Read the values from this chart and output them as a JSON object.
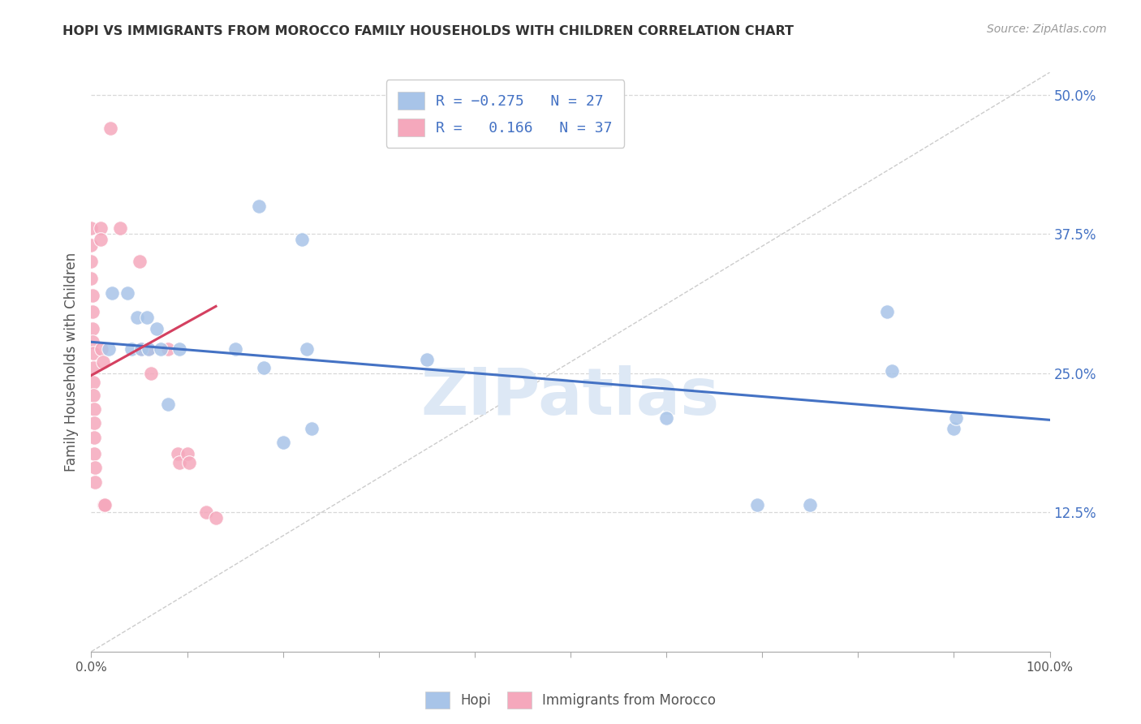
{
  "title": "HOPI VS IMMIGRANTS FROM MOROCCO FAMILY HOUSEHOLDS WITH CHILDREN CORRELATION CHART",
  "source": "Source: ZipAtlas.com",
  "ylabel": "Family Households with Children",
  "watermark": "ZIPatlas",
  "legend": {
    "hopi_r": "-0.275",
    "hopi_n": "27",
    "morocco_r": "0.166",
    "morocco_n": "37"
  },
  "xlim": [
    0.0,
    1.0
  ],
  "ylim": [
    0.0,
    0.52
  ],
  "yticks": [
    0.0,
    0.125,
    0.25,
    0.375,
    0.5
  ],
  "yticklabels_right": [
    "",
    "12.5%",
    "25.0%",
    "37.5%",
    "50.0%"
  ],
  "hopi_color": "#a8c4e8",
  "morocco_color": "#f5a8bc",
  "hopi_line_color": "#4472C4",
  "morocco_line_color": "#d44060",
  "hopi_scatter": [
    [
      0.018,
      0.272
    ],
    [
      0.022,
      0.322
    ],
    [
      0.038,
      0.322
    ],
    [
      0.042,
      0.272
    ],
    [
      0.048,
      0.3
    ],
    [
      0.052,
      0.272
    ],
    [
      0.058,
      0.3
    ],
    [
      0.06,
      0.272
    ],
    [
      0.068,
      0.29
    ],
    [
      0.072,
      0.272
    ],
    [
      0.08,
      0.222
    ],
    [
      0.092,
      0.272
    ],
    [
      0.15,
      0.272
    ],
    [
      0.175,
      0.4
    ],
    [
      0.18,
      0.255
    ],
    [
      0.2,
      0.188
    ],
    [
      0.22,
      0.37
    ],
    [
      0.225,
      0.272
    ],
    [
      0.23,
      0.2
    ],
    [
      0.35,
      0.262
    ],
    [
      0.6,
      0.21
    ],
    [
      0.695,
      0.132
    ],
    [
      0.75,
      0.132
    ],
    [
      0.83,
      0.305
    ],
    [
      0.835,
      0.252
    ],
    [
      0.9,
      0.2
    ],
    [
      0.902,
      0.21
    ]
  ],
  "morocco_scatter": [
    [
      0.0,
      0.38
    ],
    [
      0.0,
      0.365
    ],
    [
      0.0,
      0.35
    ],
    [
      0.0,
      0.335
    ],
    [
      0.001,
      0.32
    ],
    [
      0.001,
      0.305
    ],
    [
      0.001,
      0.29
    ],
    [
      0.001,
      0.278
    ],
    [
      0.002,
      0.268
    ],
    [
      0.002,
      0.255
    ],
    [
      0.002,
      0.242
    ],
    [
      0.002,
      0.23
    ],
    [
      0.003,
      0.218
    ],
    [
      0.003,
      0.205
    ],
    [
      0.003,
      0.192
    ],
    [
      0.003,
      0.178
    ],
    [
      0.004,
      0.165
    ],
    [
      0.004,
      0.152
    ],
    [
      0.01,
      0.38
    ],
    [
      0.01,
      0.37
    ],
    [
      0.011,
      0.272
    ],
    [
      0.012,
      0.26
    ],
    [
      0.013,
      0.132
    ],
    [
      0.014,
      0.132
    ],
    [
      0.02,
      0.47
    ],
    [
      0.03,
      0.38
    ],
    [
      0.05,
      0.35
    ],
    [
      0.052,
      0.272
    ],
    [
      0.06,
      0.272
    ],
    [
      0.062,
      0.25
    ],
    [
      0.08,
      0.272
    ],
    [
      0.09,
      0.178
    ],
    [
      0.092,
      0.17
    ],
    [
      0.1,
      0.178
    ],
    [
      0.102,
      0.17
    ],
    [
      0.12,
      0.125
    ],
    [
      0.13,
      0.12
    ]
  ],
  "hopi_trendline": {
    "x_start": 0.0,
    "x_end": 1.0,
    "y_start": 0.278,
    "y_end": 0.208
  },
  "morocco_trendline": {
    "x_start": 0.0,
    "x_end": 0.13,
    "y_start": 0.248,
    "y_end": 0.31
  },
  "dashed_trendline": {
    "x_start": 0.0,
    "x_end": 1.0,
    "y_start": 0.0,
    "y_end": 0.52
  }
}
